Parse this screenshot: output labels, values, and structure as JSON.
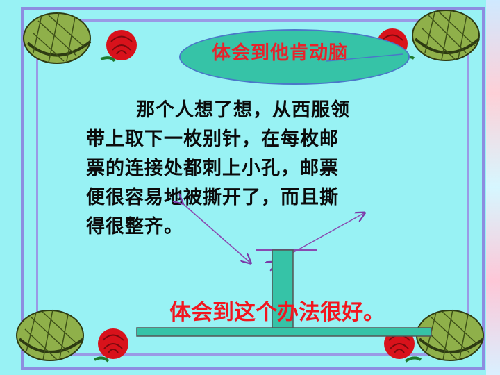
{
  "title": "体会到他肯动脑",
  "body": {
    "lines": [
      "那个人想了想，从西服领",
      "带上取下一枚别针，在每枚邮",
      "票的连接处都刺上小孔，邮票",
      "便很容易地被撕开了，而且撕",
      "得很整齐。"
    ]
  },
  "conclusion": "体会到这个办法很好。",
  "colors": {
    "background": "#98f2f4",
    "frame": "#8d8de0",
    "ellipse": "#36c3a7",
    "title_text": "#e8222b",
    "body_text": "#0b0b0b",
    "conclusion_text": "#f2161f",
    "t_bar": "#36c3a7",
    "helmet": "#8fb04a",
    "rose": "#d8121b"
  },
  "decorations": {
    "corner_icons": [
      "helmet-icon",
      "helmet-icon",
      "helmet-icon",
      "helmet-icon"
    ],
    "flower_icons": [
      "rose-icon",
      "rose-icon",
      "rose-icon",
      "rose-icon"
    ]
  }
}
